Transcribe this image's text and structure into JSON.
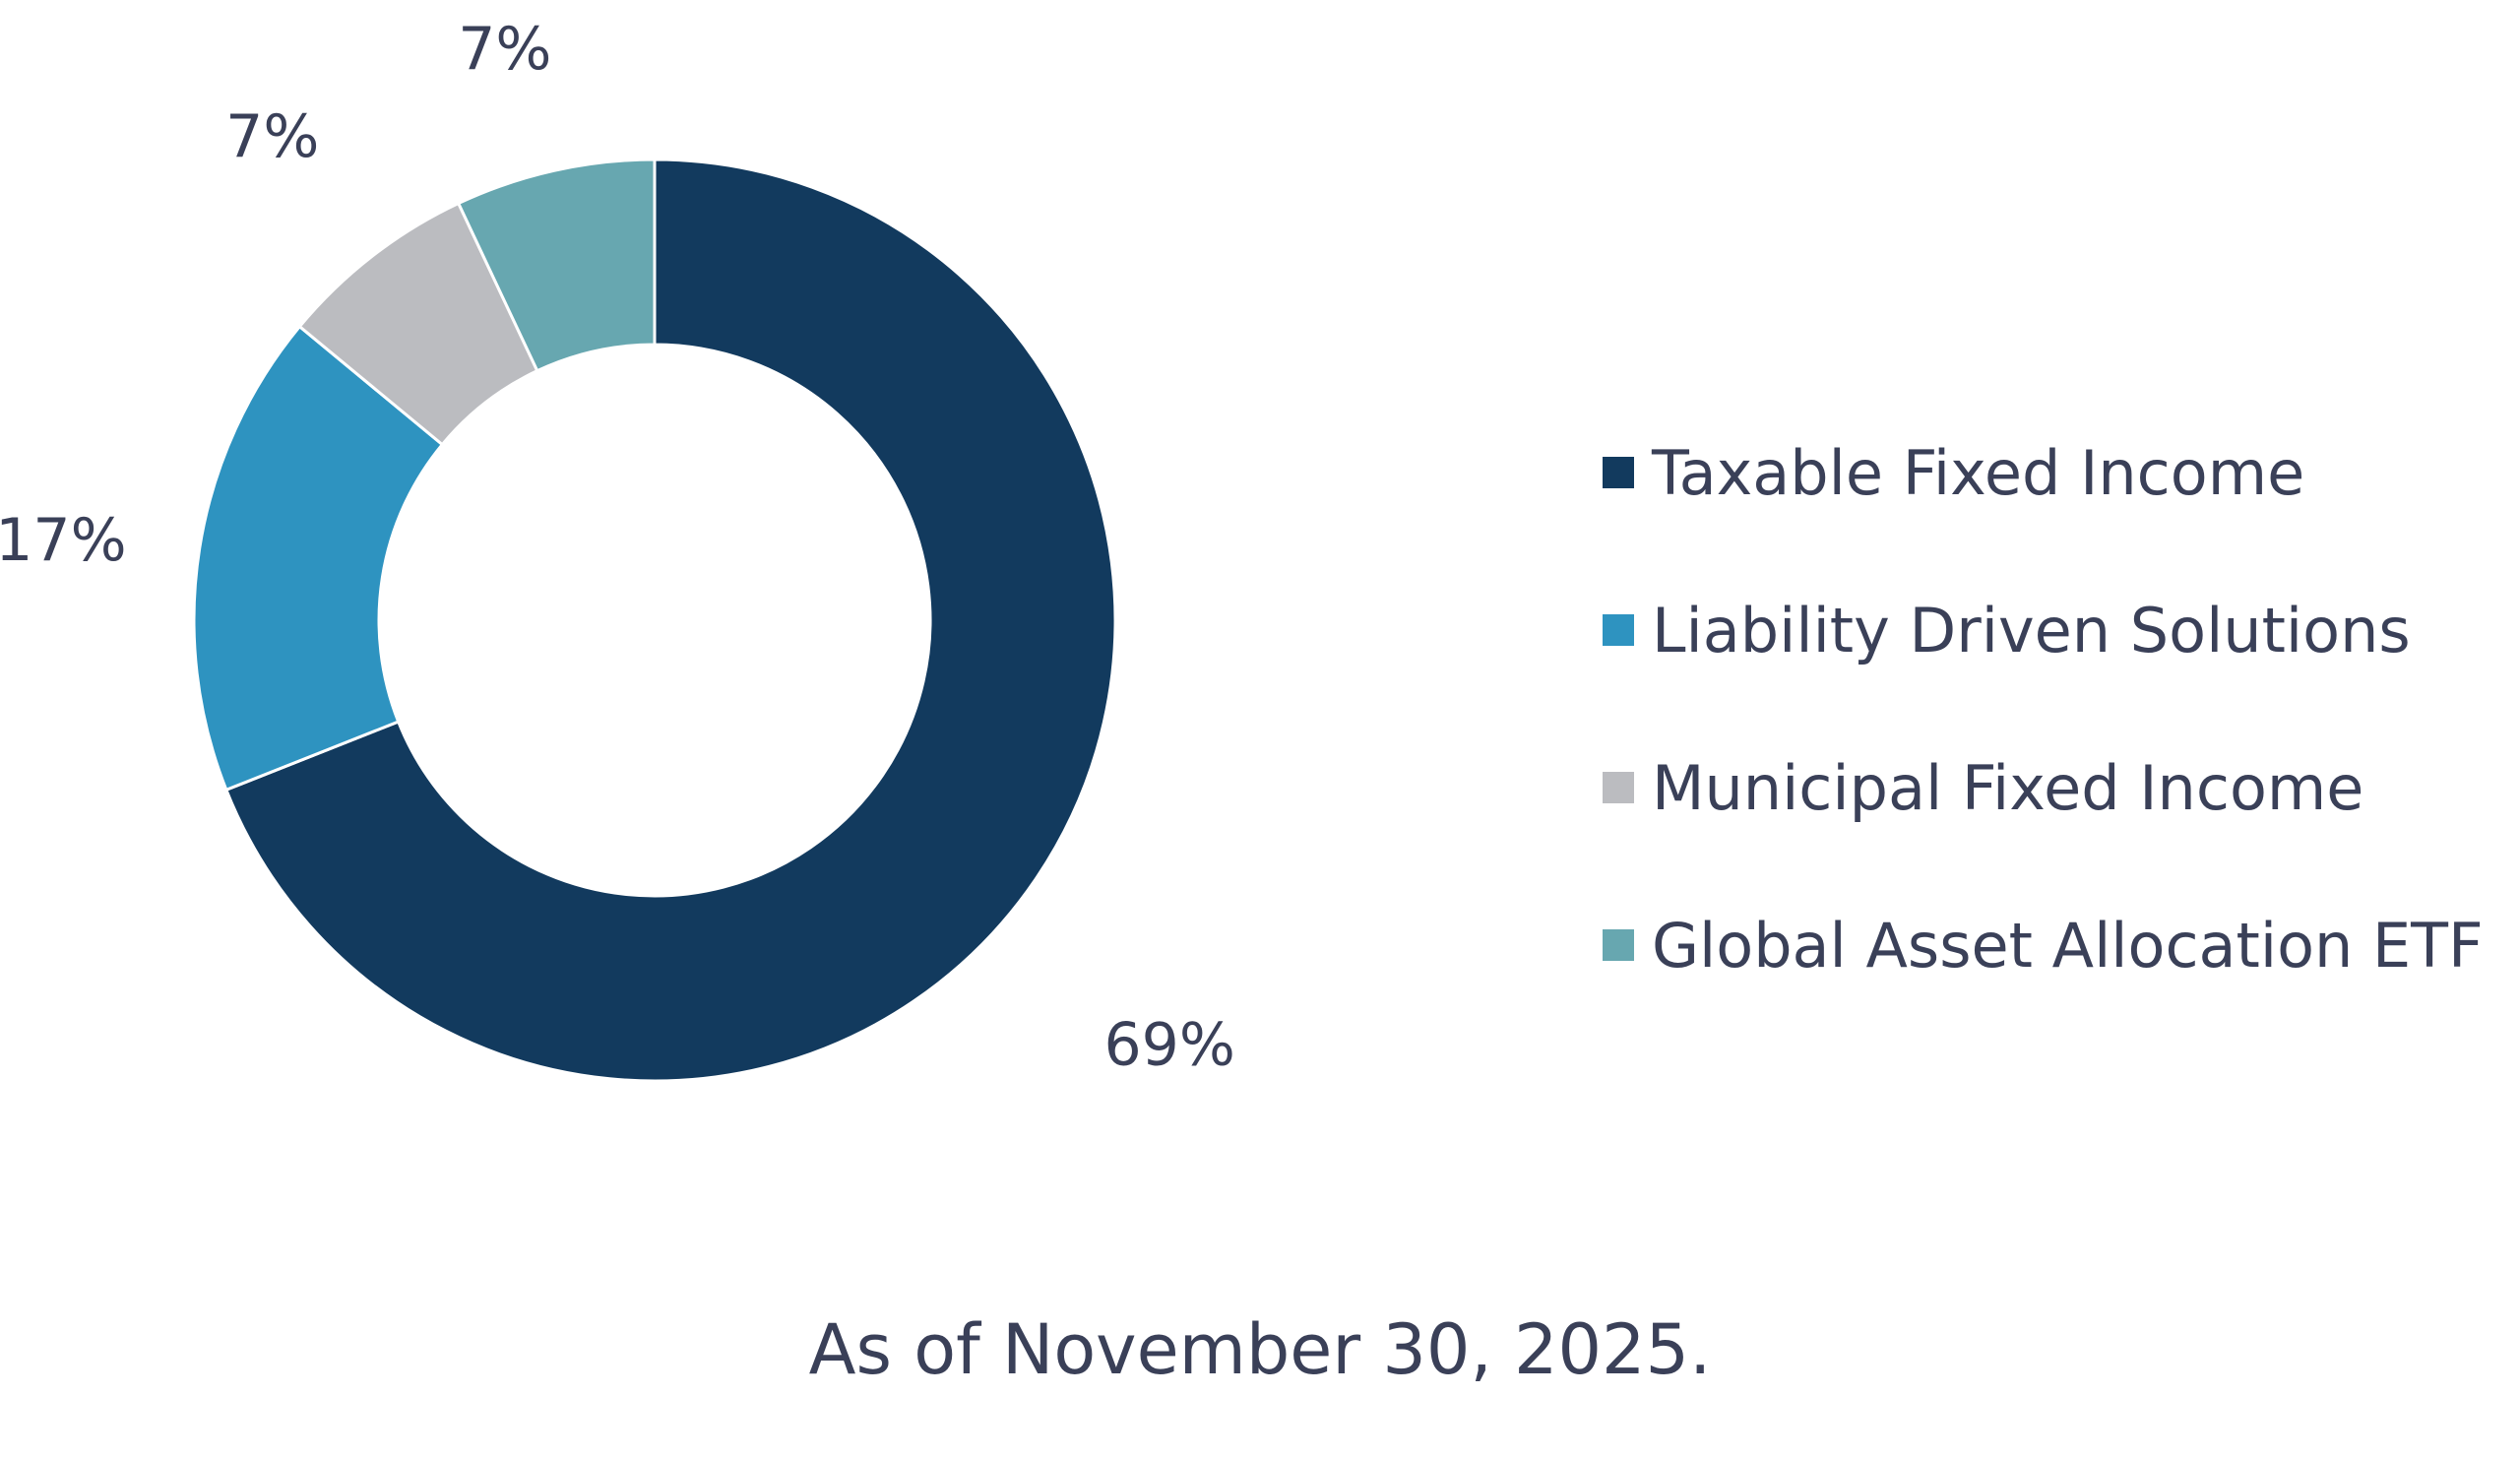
{
  "chart_data": {
    "type": "pie",
    "donut": true,
    "categories": [
      "Taxable Fixed Income",
      "Liability Driven Solutions",
      "Municipal Fixed Income",
      "Global Asset Allocation ETF"
    ],
    "values": [
      69,
      17,
      7,
      7
    ],
    "value_labels": [
      "69%",
      "17%",
      "7%",
      "7%"
    ],
    "colors": [
      "#123a5e",
      "#2e93c0",
      "#bbbcc0",
      "#67a7b0"
    ],
    "legend_position": "right",
    "start_angle": "12 o'clock, clockwise"
  },
  "footnote": "As of November 30, 2025."
}
